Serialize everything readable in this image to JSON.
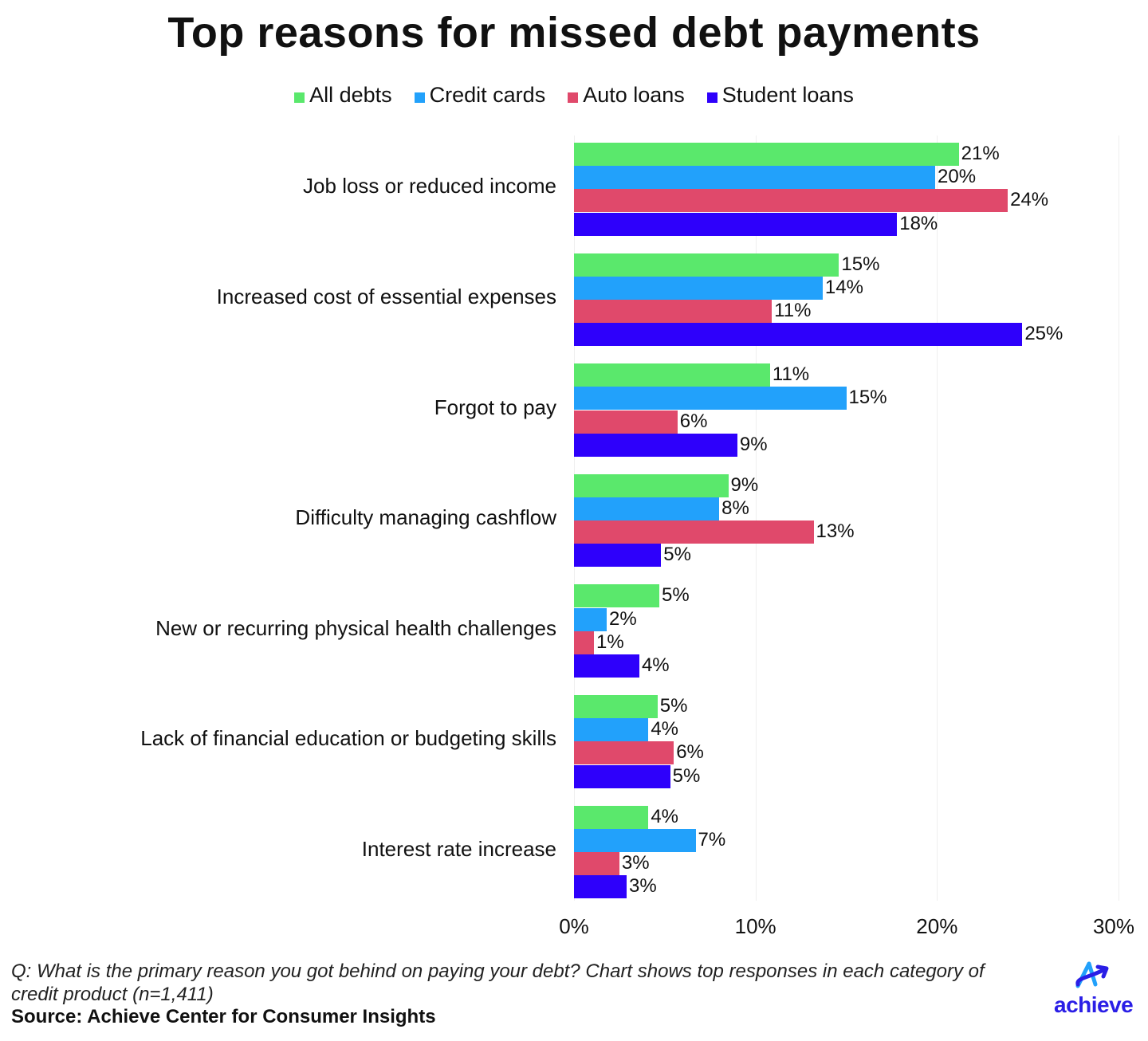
{
  "title": "Top reasons for missed debt payments",
  "legend": [
    {
      "label": "All debts",
      "color": "#5ae86c"
    },
    {
      "label": "Credit cards",
      "color": "#22a1fb"
    },
    {
      "label": "Auto loans",
      "color": "#e0496b"
    },
    {
      "label": "Student loans",
      "color": "#2e00fb"
    }
  ],
  "axis": {
    "ticks": [
      "0%",
      "10%",
      "20%",
      "30%"
    ]
  },
  "footer": {
    "note": "Q: What is the primary reason you got behind on paying your debt? Chart shows top responses in each category of credit product (n=1,411)",
    "source": "Source: Achieve Center for Consumer Insights",
    "logo": "achieve"
  },
  "chart_data": {
    "type": "bar",
    "orientation": "horizontal",
    "title": "Top reasons for missed debt payments",
    "xlabel": "",
    "ylabel": "",
    "xlim": [
      0,
      30
    ],
    "x_ticks": [
      "0%",
      "10%",
      "20%",
      "30%"
    ],
    "grid": true,
    "legend_position": "top",
    "categories": [
      "Job loss or reduced income",
      "Increased cost of essential expenses",
      "Forgot to pay",
      "Difficulty managing cashflow",
      "New or recurring physical health challenges",
      "Lack of financial education or budgeting skills",
      "Interest rate increase"
    ],
    "series": [
      {
        "name": "All debts",
        "color": "#5ae86c",
        "values": [
          21,
          15,
          11,
          9,
          5,
          5,
          4
        ],
        "bar_values": [
          21.2,
          14.6,
          10.8,
          8.5,
          4.7,
          4.6,
          4.1
        ]
      },
      {
        "name": "Credit cards",
        "color": "#22a1fb",
        "values": [
          20,
          14,
          15,
          8,
          2,
          4,
          7
        ],
        "bar_values": [
          19.9,
          13.7,
          15.0,
          8.0,
          1.8,
          4.1,
          6.7
        ]
      },
      {
        "name": "Auto loans",
        "color": "#e0496b",
        "values": [
          24,
          11,
          6,
          13,
          1,
          6,
          3
        ],
        "bar_values": [
          23.9,
          10.9,
          5.7,
          13.2,
          1.1,
          5.5,
          2.5
        ]
      },
      {
        "name": "Student loans",
        "color": "#2e00fb",
        "values": [
          18,
          25,
          9,
          5,
          4,
          5,
          3
        ],
        "bar_values": [
          17.8,
          24.7,
          9.0,
          4.8,
          3.6,
          5.3,
          2.9
        ]
      }
    ],
    "annotations": [
      "Q: What is the primary reason you got behind on paying your debt? Chart shows top responses in each category of credit product (n=1,411)",
      "Source: Achieve Center for Consumer Insights"
    ]
  }
}
